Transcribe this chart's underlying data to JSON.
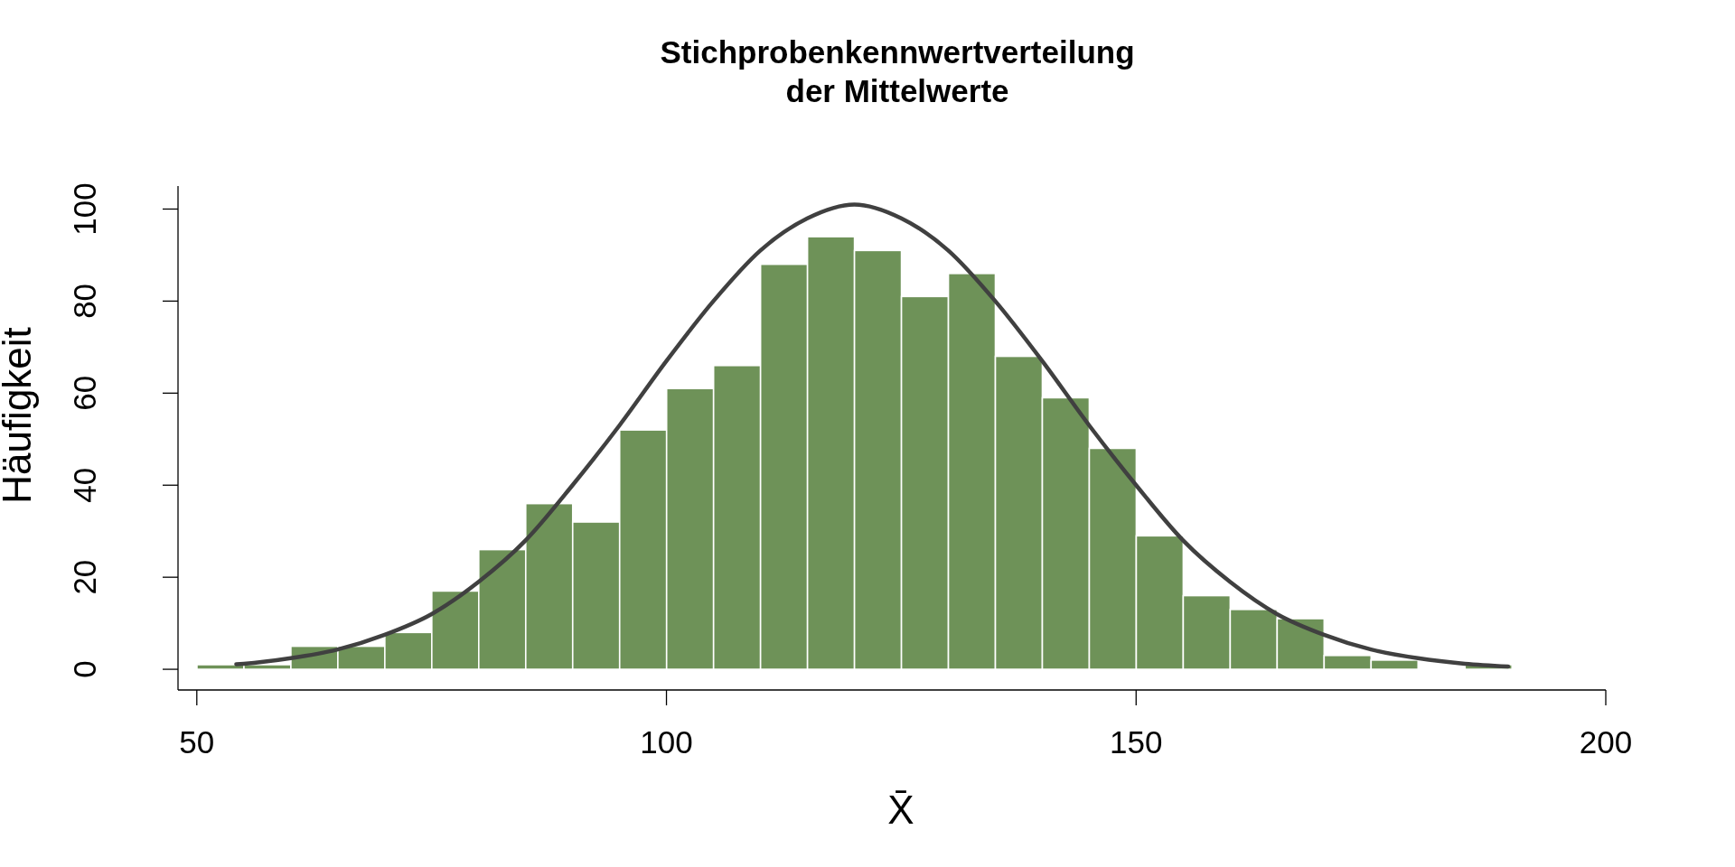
{
  "chart_data": {
    "type": "histogram",
    "title": "Stichprobenkennwertverteilung\nder Mittelwerte",
    "xlabel": "X̄",
    "ylabel": "Häufigkeit",
    "bins": [
      50,
      55,
      60,
      65,
      70,
      75,
      80,
      85,
      90,
      95,
      100,
      105,
      110,
      115,
      120,
      125,
      130,
      135,
      140,
      145,
      150,
      155,
      160,
      165,
      170,
      175,
      180,
      185,
      190
    ],
    "series": [
      {
        "color": "#6e9258",
        "values": [
          1,
          1,
          5,
          5,
          8,
          17,
          26,
          36,
          32,
          52,
          61,
          66,
          88,
          94,
          91,
          81,
          86,
          68,
          59,
          48,
          29,
          16,
          13,
          11,
          3,
          2,
          0,
          1
        ]
      },
      {
        "type": "line",
        "color": "#404040",
        "x": [
          54.2,
          55,
          60,
          65,
          70,
          75,
          80,
          85,
          90,
          95,
          100,
          105,
          110,
          115,
          120,
          125,
          130,
          135,
          140,
          145,
          150,
          155,
          160,
          165,
          170,
          175,
          180,
          185,
          189.6
        ],
        "values": [
          1.1,
          1.2,
          2.4,
          4.3,
          7.5,
          12,
          19,
          28,
          40,
          53,
          67,
          80,
          91,
          98,
          101,
          98,
          91,
          80,
          67,
          53,
          40,
          28,
          19,
          12,
          7.5,
          4.3,
          2.4,
          1.2,
          0.6
        ]
      }
    ],
    "xlim": [
      48,
      200
    ],
    "ylim": [
      -4.5,
      105
    ],
    "xticks": [
      50,
      100,
      150,
      200
    ],
    "yticks": [
      0,
      20,
      40,
      60,
      80,
      100
    ]
  }
}
